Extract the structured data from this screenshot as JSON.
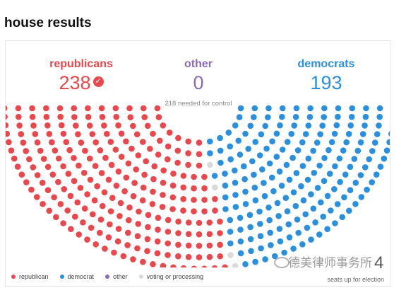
{
  "page_title": "house results",
  "parties": {
    "republican": {
      "label": "republicans",
      "seats": "238",
      "won": true,
      "color": "#e9474b"
    },
    "other": {
      "label": "other",
      "seats": "0",
      "color": "#8a6bb8"
    },
    "democrat": {
      "label": "democrats",
      "seats": "193",
      "color": "#2a8fdd"
    }
  },
  "needed_text": "218 needed for control",
  "legend": [
    {
      "label": "republican",
      "color": "#e9474b"
    },
    {
      "label": "democrat",
      "color": "#2a8fdd"
    },
    {
      "label": "other",
      "color": "#8a6bb8"
    },
    {
      "label": "voting or processing",
      "color": "#d9d9d9"
    }
  ],
  "footnote": "seats up for election",
  "watermark": "德美律师事务所",
  "corner_number": "4",
  "chart_data": {
    "type": "hemicycle",
    "seats": [
      {
        "name": "republican",
        "value": 238,
        "color": "#e9474b"
      },
      {
        "name": "other",
        "value": 0,
        "color": "#8a6bb8"
      },
      {
        "name": "voting or processing",
        "value": 4,
        "color": "#d9d9d9"
      },
      {
        "name": "democrat",
        "value": 193,
        "color": "#2a8fdd"
      }
    ],
    "total": 435,
    "majority": 218
  }
}
